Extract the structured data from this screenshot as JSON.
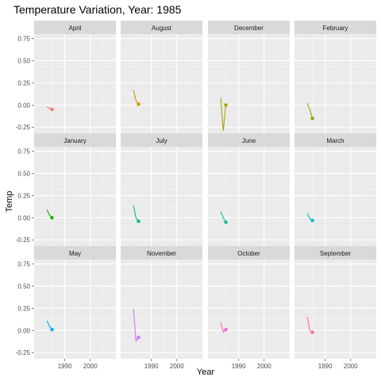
{
  "chart_data": {
    "type": "line",
    "title": "Temperature Variation, Year: 1985",
    "xlabel": "Year",
    "ylabel": "Temp",
    "xlim": [
      1978,
      2010
    ],
    "ylim": [
      -0.32,
      0.8
    ],
    "x_ticks": [
      1990,
      2000
    ],
    "y_ticks": [
      -0.25,
      0,
      0.25,
      0.5,
      0.75
    ],
    "y_tick_labels": [
      "-0.25",
      "0.00",
      "0.25",
      "0.50",
      "0.75"
    ],
    "grid": true,
    "legend": "none",
    "panels": [
      {
        "name": "April",
        "color": "#F8766D",
        "x": [
          1983,
          1984,
          1985
        ],
        "y": [
          -0.02,
          -0.04,
          -0.05
        ],
        "point": [
          1985,
          -0.05
        ]
      },
      {
        "name": "August",
        "color": "#CD9600",
        "x": [
          1983,
          1984,
          1985
        ],
        "y": [
          0.17,
          0.05,
          0.01
        ],
        "point": [
          1985,
          0.01
        ]
      },
      {
        "name": "December",
        "color": "#ABA300",
        "x": [
          1983,
          1984,
          1985
        ],
        "y": [
          0.08,
          -0.29,
          0.0
        ],
        "point": [
          1985,
          0.0
        ]
      },
      {
        "name": "February",
        "color": "#7CAE00",
        "x": [
          1983,
          1984,
          1985
        ],
        "y": [
          0.02,
          -0.05,
          -0.15
        ],
        "point": [
          1985,
          -0.15
        ]
      },
      {
        "name": "January",
        "color": "#0CB702",
        "x": [
          1983,
          1984,
          1985
        ],
        "y": [
          0.09,
          0.03,
          0.0
        ],
        "point": [
          1985,
          0.0
        ]
      },
      {
        "name": "July",
        "color": "#00BE67",
        "x": [
          1983,
          1984,
          1985
        ],
        "y": [
          0.14,
          0.0,
          -0.04
        ],
        "point": [
          1985,
          -0.04
        ]
      },
      {
        "name": "June",
        "color": "#00C19A",
        "x": [
          1983,
          1984,
          1985
        ],
        "y": [
          0.07,
          0.0,
          -0.05
        ],
        "point": [
          1985,
          -0.05
        ]
      },
      {
        "name": "March",
        "color": "#00BFC4",
        "x": [
          1983,
          1984,
          1985
        ],
        "y": [
          0.05,
          -0.01,
          -0.03
        ],
        "point": [
          1985,
          -0.03
        ]
      },
      {
        "name": "May",
        "color": "#00A9FF",
        "x": [
          1983,
          1984,
          1985
        ],
        "y": [
          0.11,
          0.05,
          0.01
        ],
        "point": [
          1985,
          0.01
        ]
      },
      {
        "name": "November",
        "color": "#C77CFF",
        "x": [
          1983,
          1984,
          1985
        ],
        "y": [
          0.24,
          -0.12,
          -0.08
        ],
        "point": [
          1985,
          -0.08
        ]
      },
      {
        "name": "October",
        "color": "#FF61CC",
        "x": [
          1983,
          1984,
          1985
        ],
        "y": [
          0.09,
          -0.02,
          0.01
        ],
        "point": [
          1985,
          0.01
        ]
      },
      {
        "name": "September",
        "color": "#FF68A1",
        "x": [
          1983,
          1984,
          1985
        ],
        "y": [
          0.15,
          0.0,
          -0.02
        ],
        "point": [
          1985,
          -0.02
        ]
      }
    ]
  }
}
